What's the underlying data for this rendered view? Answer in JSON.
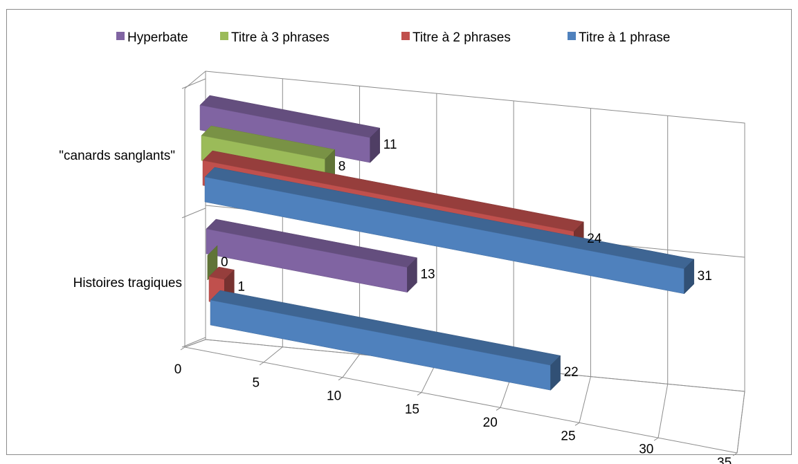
{
  "chart_data": {
    "type": "bar",
    "orientation": "horizontal",
    "style": "3d",
    "categories": [
      "\"canards sanglants\"",
      "Histoires tragiques"
    ],
    "series": [
      {
        "name": "Titre à 1 phrase",
        "color": "#4f81bd",
        "values": [
          31,
          22
        ]
      },
      {
        "name": "Titre à 2 phrases",
        "color": "#c0504d",
        "values": [
          24,
          1
        ]
      },
      {
        "name": "Titre à 3 phrases",
        "color": "#9bbb59",
        "values": [
          8,
          0
        ]
      },
      {
        "name": "Hyperbate",
        "color": "#8064a2",
        "values": [
          11,
          13
        ]
      }
    ],
    "legend_order": [
      "Hyperbate",
      "Titre à 3 phrases",
      "Titre à 2 phrases",
      "Titre à 1 phrase"
    ],
    "legend_position": "top",
    "xlim": [
      0,
      35
    ],
    "x_ticks": [
      "0",
      "5",
      "10",
      "15",
      "20",
      "25",
      "30",
      "35"
    ],
    "grid": true,
    "data_labels": true
  }
}
